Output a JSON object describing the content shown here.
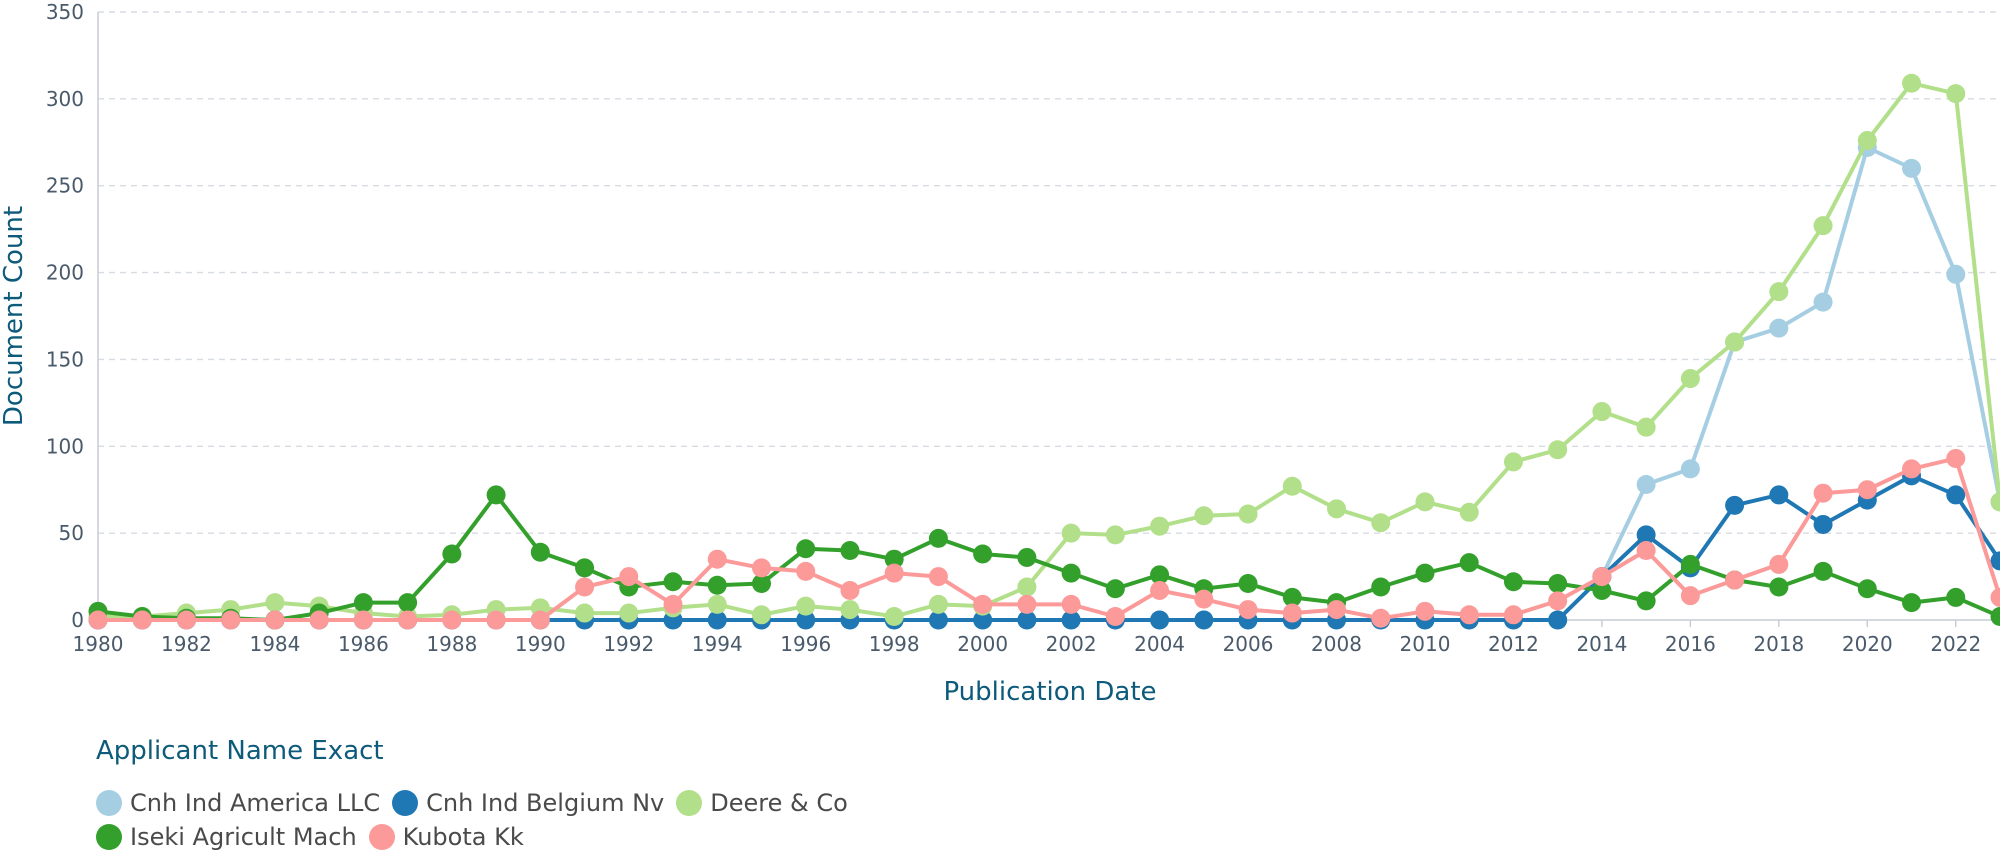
{
  "chart_data": {
    "type": "line",
    "xlabel": "Publication Date",
    "ylabel": "Document Count",
    "ylim": [
      0,
      350
    ],
    "yticks": [
      0,
      50,
      100,
      150,
      200,
      250,
      300,
      350
    ],
    "xticks": [
      1980,
      1982,
      1984,
      1986,
      1988,
      1990,
      1992,
      1994,
      1996,
      1998,
      2000,
      2002,
      2004,
      2006,
      2008,
      2010,
      2012,
      2014,
      2016,
      2018,
      2020,
      2022
    ],
    "grid": "horizontal dashed",
    "legend_placement": "bottom-left",
    "legend_title": "Applicant Name Exact",
    "x": [
      1980,
      1981,
      1982,
      1983,
      1984,
      1985,
      1986,
      1987,
      1988,
      1989,
      1990,
      1991,
      1992,
      1993,
      1994,
      1995,
      1996,
      1997,
      1998,
      1999,
      2000,
      2001,
      2002,
      2003,
      2004,
      2005,
      2006,
      2007,
      2008,
      2009,
      2010,
      2011,
      2012,
      2013,
      2014,
      2015,
      2016,
      2017,
      2018,
      2019,
      2020,
      2021,
      2022,
      2023
    ],
    "series": [
      {
        "name": "Cnh Ind America LLC",
        "color": "#a6cee3",
        "values": [
          0,
          0,
          0,
          0,
          0,
          0,
          0,
          0,
          0,
          0,
          0,
          0,
          0,
          0,
          0,
          0,
          0,
          0,
          0,
          0,
          0,
          0,
          0,
          0,
          0,
          0,
          0,
          0,
          0,
          0,
          0,
          0,
          0,
          0,
          25,
          78,
          87,
          160,
          168,
          183,
          272,
          260,
          199,
          68
        ]
      },
      {
        "name": "Cnh Ind Belgium Nv",
        "color": "#1f78b4",
        "values": [
          0,
          0,
          0,
          0,
          0,
          0,
          0,
          0,
          0,
          0,
          0,
          0,
          0,
          0,
          0,
          0,
          0,
          0,
          0,
          0,
          0,
          0,
          0,
          0,
          0,
          0,
          0,
          0,
          0,
          0,
          0,
          0,
          0,
          0,
          25,
          49,
          30,
          66,
          72,
          55,
          69,
          83,
          72,
          34
        ]
      },
      {
        "name": "Deere & Co",
        "color": "#b2df8a",
        "values": [
          2,
          2,
          4,
          6,
          10,
          8,
          4,
          2,
          3,
          6,
          7,
          4,
          4,
          7,
          9,
          3,
          8,
          6,
          2,
          9,
          8,
          19,
          50,
          49,
          54,
          60,
          61,
          77,
          64,
          56,
          68,
          62,
          91,
          98,
          120,
          111,
          139,
          160,
          189,
          227,
          276,
          309,
          303,
          68
        ]
      },
      {
        "name": "Iseki Agricult Mach",
        "color": "#33a02c",
        "values": [
          5,
          2,
          1,
          1,
          0,
          4,
          10,
          10,
          38,
          72,
          39,
          30,
          19,
          22,
          20,
          21,
          41,
          40,
          35,
          47,
          38,
          36,
          27,
          18,
          26,
          18,
          21,
          13,
          10,
          19,
          27,
          33,
          22,
          21,
          17,
          11,
          32,
          23,
          19,
          28,
          18,
          10,
          13,
          2
        ]
      },
      {
        "name": "Kubota Kk",
        "color": "#fb9a99",
        "values": [
          0,
          0,
          0,
          0,
          0,
          0,
          0,
          0,
          0,
          0,
          0,
          19,
          25,
          9,
          35,
          30,
          28,
          17,
          27,
          25,
          9,
          9,
          9,
          2,
          17,
          12,
          6,
          4,
          6,
          1,
          5,
          3,
          3,
          11,
          25,
          40,
          14,
          23,
          32,
          73,
          75,
          87,
          93,
          13
        ]
      }
    ]
  }
}
